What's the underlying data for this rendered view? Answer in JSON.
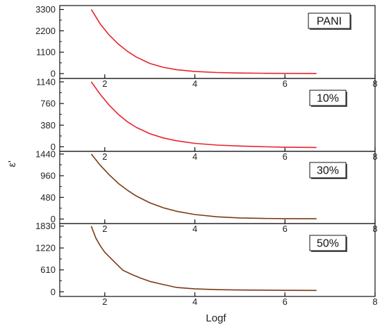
{
  "figure": {
    "xlabel": "Logf",
    "ylabel": "ε'"
  },
  "chart_data": [
    {
      "type": "line",
      "label": "PANI",
      "xlim": [
        1,
        8
      ],
      "ylim": [
        -250,
        3500
      ],
      "x_ticks": [
        2,
        4,
        6,
        8
      ],
      "y_ticks": [
        0,
        1100,
        2200,
        3300
      ],
      "grid": false,
      "line_color": "#e8232a",
      "x": [
        1.7,
        1.9,
        2.1,
        2.3,
        2.5,
        2.7,
        3.0,
        3.3,
        3.6,
        4.0,
        4.5,
        5.0,
        5.5,
        6.0,
        6.7
      ],
      "y": [
        3300,
        2550,
        1980,
        1520,
        1150,
        850,
        520,
        320,
        200,
        110,
        55,
        30,
        18,
        12,
        8
      ]
    },
    {
      "type": "line",
      "label": "10%",
      "xlim": [
        1,
        8
      ],
      "ylim": [
        -80,
        1200
      ],
      "x_ticks": [
        2,
        4,
        6,
        8
      ],
      "y_ticks": [
        0,
        380,
        760,
        1140
      ],
      "grid": false,
      "line_color": "#e8232a",
      "x": [
        1.7,
        1.9,
        2.1,
        2.3,
        2.5,
        2.7,
        3.0,
        3.3,
        3.6,
        4.0,
        4.5,
        5.0,
        5.5,
        6.0,
        6.7
      ],
      "y": [
        1140,
        920,
        730,
        570,
        440,
        340,
        230,
        155,
        105,
        60,
        30,
        14,
        2,
        -8,
        -12
      ]
    },
    {
      "type": "line",
      "label": "30%",
      "xlim": [
        1,
        8
      ],
      "ylim": [
        -100,
        1500
      ],
      "x_ticks": [
        2,
        4,
        6,
        8
      ],
      "y_ticks": [
        0,
        480,
        960,
        1440
      ],
      "grid": false,
      "line_color": "#7a3a16",
      "x": [
        1.7,
        1.9,
        2.1,
        2.3,
        2.5,
        2.7,
        3.0,
        3.3,
        3.6,
        4.0,
        4.5,
        5.0,
        5.5,
        6.0,
        6.7
      ],
      "y": [
        1440,
        1190,
        980,
        790,
        640,
        510,
        360,
        250,
        170,
        100,
        50,
        25,
        14,
        9,
        6
      ]
    },
    {
      "type": "line",
      "label": "50%",
      "xlim": [
        1,
        8
      ],
      "ylim": [
        -130,
        1900
      ],
      "x_ticks": [
        2,
        4,
        6,
        8
      ],
      "y_ticks": [
        0,
        610,
        1220,
        1830
      ],
      "grid": false,
      "line_color": "#7a3a16",
      "x": [
        1.7,
        1.8,
        1.9,
        2.0,
        2.2,
        2.4,
        2.6,
        2.8,
        3.0,
        3.3,
        3.6,
        4.0,
        4.5,
        5.0,
        5.5,
        6.0,
        6.7
      ],
      "y": [
        1830,
        1500,
        1280,
        1100,
        850,
        600,
        480,
        380,
        290,
        200,
        120,
        80,
        60,
        50,
        45,
        40,
        38
      ]
    }
  ]
}
